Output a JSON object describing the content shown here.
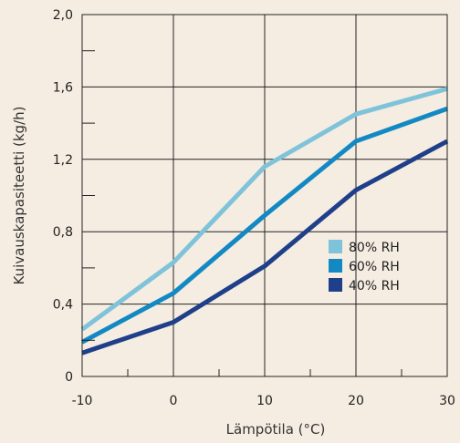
{
  "chart_data": {
    "type": "line",
    "xlabel": "Lämpötila (°C)",
    "ylabel": "Kuivauskapasiteetti (kg/h)",
    "xlim": [
      -10,
      30
    ],
    "ylim": [
      0,
      2.0
    ],
    "x_ticks": [
      -10,
      0,
      10,
      20,
      30
    ],
    "x_tick_labels": [
      "-10",
      "0",
      "10",
      "20",
      "30"
    ],
    "y_ticks": [
      0,
      0.4,
      0.8,
      1.2,
      1.6,
      2.0
    ],
    "y_tick_labels": [
      "0",
      "0,4",
      "0,8",
      "1,2",
      "1,6",
      "2,0"
    ],
    "grid": true,
    "legend_position": "bottom-right",
    "series": [
      {
        "name": "80% RH",
        "color": "#7fc3da",
        "points": [
          [
            -10,
            0.26
          ],
          [
            0,
            0.63
          ],
          [
            10,
            1.16
          ],
          [
            20,
            1.45
          ],
          [
            30,
            1.59
          ]
        ]
      },
      {
        "name": "60% RH",
        "color": "#1389c4",
        "points": [
          [
            -10,
            0.19
          ],
          [
            0,
            0.46
          ],
          [
            10,
            0.89
          ],
          [
            20,
            1.3
          ],
          [
            30,
            1.48
          ]
        ]
      },
      {
        "name": "40% RH",
        "color": "#1f3f8a",
        "points": [
          [
            -10,
            0.13
          ],
          [
            0,
            0.3
          ],
          [
            10,
            0.61
          ],
          [
            20,
            1.03
          ],
          [
            30,
            1.3
          ]
        ]
      }
    ]
  }
}
